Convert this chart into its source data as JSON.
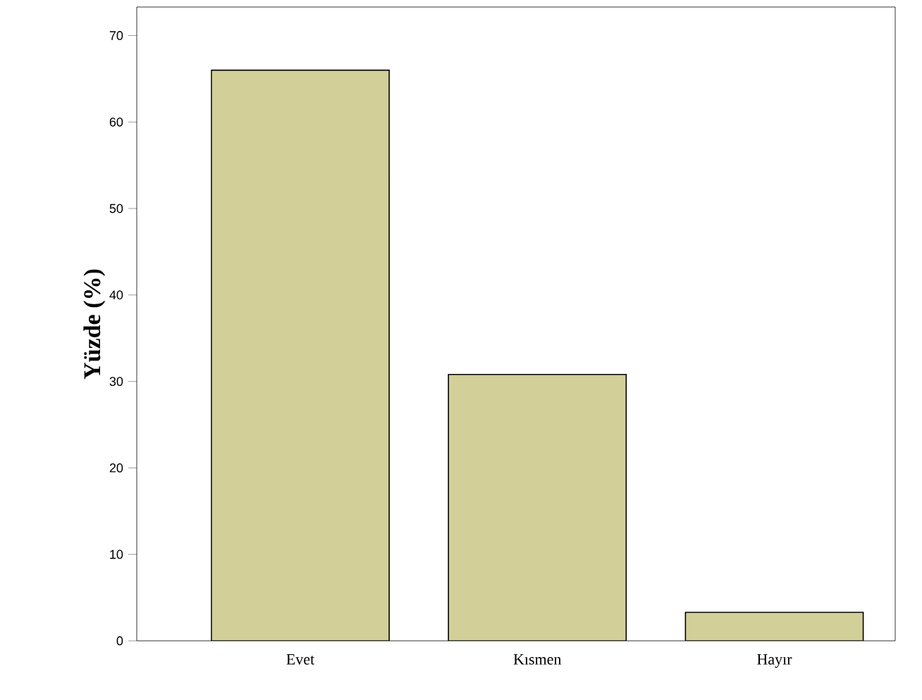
{
  "chart_data": {
    "type": "bar",
    "ylabel": "Yüzde (%)",
    "categories": [
      "Evet",
      "Kısmen",
      "Hayır"
    ],
    "values": [
      66,
      30.8,
      3.3
    ],
    "color": "#d3cf98",
    "ylim": [
      0,
      73.3
    ],
    "yticks": [
      0,
      10,
      20,
      30,
      40,
      50,
      60,
      70
    ],
    "grid": false
  }
}
